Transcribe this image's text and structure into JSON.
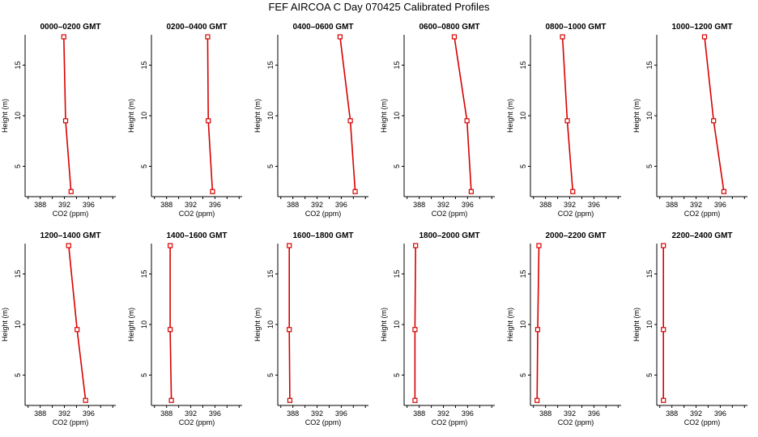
{
  "title": "FEF AIRCOA C  Day 070425  Calibrated Profiles",
  "colors": {
    "profile": "#d80000",
    "axis": "#000000",
    "background": "#ffffff"
  },
  "chart_data": {
    "type": "line",
    "title": "FEF AIRCOA C  Day 070425  Calibrated Profiles",
    "xlabel": "CO2 (ppm)",
    "ylabel": "Height (m)",
    "xlim": [
      385.5,
      400.5
    ],
    "ylim": [
      2,
      18
    ],
    "x_ticks": [
      388,
      392,
      396
    ],
    "y_ticks": [
      5,
      10,
      15
    ],
    "grid": false,
    "heights": [
      17.8,
      9.5,
      2.5
    ],
    "panels": [
      {
        "title": "0000–0200 GMT",
        "co2": [
          391.9,
          392.2,
          393.1
        ]
      },
      {
        "title": "0200–0400 GMT",
        "co2": [
          394.8,
          394.9,
          395.6
        ]
      },
      {
        "title": "0400–0600 GMT",
        "co2": [
          395.8,
          397.5,
          398.3
        ]
      },
      {
        "title": "0600–0800 GMT",
        "co2": [
          393.8,
          395.9,
          396.6
        ]
      },
      {
        "title": "0800–1000 GMT",
        "co2": [
          390.8,
          391.6,
          392.5
        ]
      },
      {
        "title": "1000–1200 GMT",
        "co2": [
          393.4,
          394.9,
          396.6
        ]
      },
      {
        "title": "1200–1400 GMT",
        "co2": [
          392.7,
          394.1,
          395.5
        ]
      },
      {
        "title": "1400–1600 GMT",
        "co2": [
          388.6,
          388.6,
          388.8
        ]
      },
      {
        "title": "1600–1800 GMT",
        "co2": [
          387.4,
          387.4,
          387.5
        ]
      },
      {
        "title": "1800–2000 GMT",
        "co2": [
          387.4,
          387.3,
          387.3
        ]
      },
      {
        "title": "2000–2200 GMT",
        "co2": [
          386.9,
          386.7,
          386.6
        ]
      },
      {
        "title": "2200–2400 GMT",
        "co2": [
          386.6,
          386.6,
          386.6
        ]
      }
    ]
  }
}
